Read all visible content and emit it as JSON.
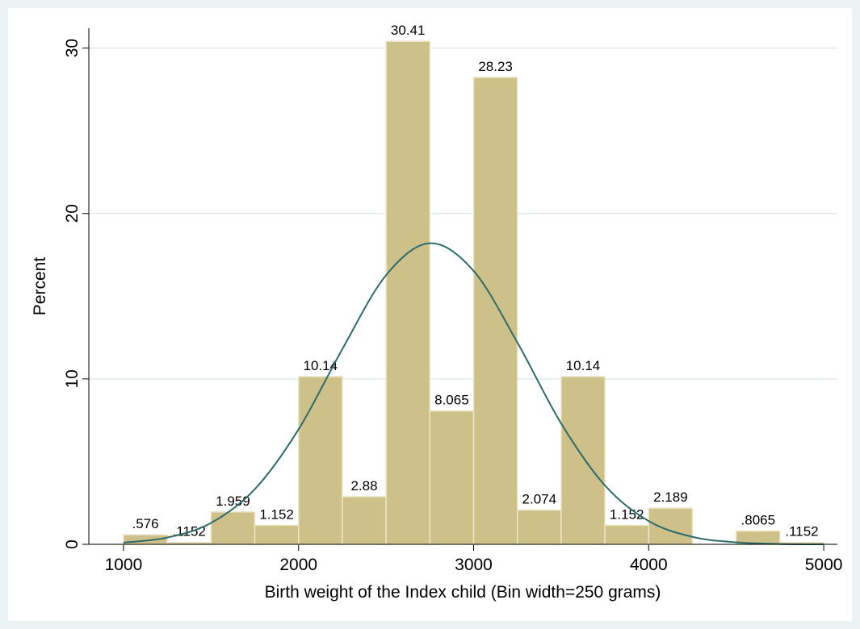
{
  "chart_data": {
    "type": "histogram",
    "x_label": "Birth weight of the Index child (Bin width=250 grams)",
    "y_label": "Percent",
    "bins": [
      1000,
      1250,
      1500,
      1750,
      2000,
      2250,
      2500,
      2750,
      3000,
      3250,
      3500,
      3750,
      4000,
      4250,
      4500,
      4750,
      5000
    ],
    "values": [
      0.576,
      0.1152,
      1.959,
      1.152,
      10.14,
      2.88,
      30.41,
      8.065,
      28.23,
      2.074,
      10.14,
      1.152,
      2.189,
      0,
      0.8065,
      0.1152
    ],
    "value_labels": [
      ".576",
      ".1152",
      "1.959",
      "1.152",
      "10.14",
      "2.88",
      "30.41",
      "8.065",
      "28.23",
      "2.074",
      "10.14",
      "1.152",
      "2.189",
      null,
      ".8065",
      ".1152"
    ],
    "color": "#cdc189",
    "density_curve": {
      "color": "#2e6b6b",
      "x": [
        1000,
        1250,
        1500,
        1750,
        2000,
        2250,
        2500,
        2750,
        3000,
        3250,
        3500,
        3750,
        4000,
        4250,
        4500,
        4750,
        5000
      ],
      "values": [
        0.105,
        0.41,
        1.29,
        3.33,
        6.95,
        11.8,
        16.27,
        18.2,
        16.53,
        12.2,
        7.31,
        3.56,
        1.41,
        0.45,
        0.12,
        0.02,
        0.0
      ]
    },
    "xlim": [
      802,
      5078
    ],
    "ylim": [
      0,
      31.2
    ],
    "xticks": [
      1000,
      2000,
      3000,
      4000,
      5000
    ],
    "yticks": [
      0,
      10,
      20,
      30
    ],
    "grid": true
  }
}
